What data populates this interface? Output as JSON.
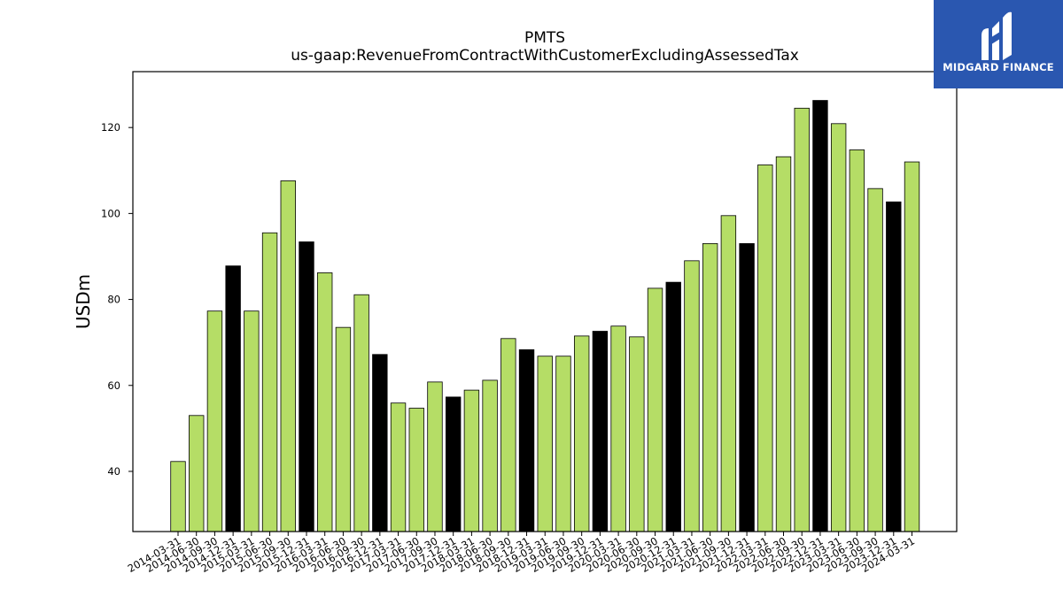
{
  "logo": {
    "text": "MIDGARD FINANCE"
  },
  "colors": {
    "bar": "#b5dd66",
    "highlight": "#000000",
    "edge": "#000000",
    "logo_bg": "#2a57b0"
  },
  "chart_data": {
    "type": "bar",
    "title": "PMTS",
    "subtitle": "us-gaap:RevenueFromContractWithCustomerExcludingAssessedTax",
    "ylabel": "USDm",
    "xlabel": "",
    "ylim": [
      26,
      133
    ],
    "yticks": [
      40,
      60,
      80,
      100,
      120
    ],
    "grid": false,
    "categories": [
      "2014-03-31",
      "2014-06-30",
      "2014-09-30",
      "2014-12-31",
      "2015-03-31",
      "2015-06-30",
      "2015-09-30",
      "2015-12-31",
      "2016-03-31",
      "2016-06-30",
      "2016-09-30",
      "2016-12-31",
      "2017-03-31",
      "2017-06-30",
      "2017-09-30",
      "2017-12-31",
      "2018-03-31",
      "2018-06-30",
      "2018-09-30",
      "2018-12-31",
      "2019-03-31",
      "2019-06-30",
      "2019-09-30",
      "2019-12-31",
      "2020-03-31",
      "2020-06-30",
      "2020-09-30",
      "2020-12-31",
      "2021-03-31",
      "2021-06-30",
      "2021-09-30",
      "2021-12-31",
      "2022-03-31",
      "2022-06-30",
      "2022-09-30",
      "2022-12-31",
      "2023-03-31",
      "2023-06-30",
      "2023-09-30",
      "2023-12-31",
      "2024-03-31"
    ],
    "values": [
      42.3,
      53.0,
      77.3,
      87.8,
      77.3,
      95.5,
      107.6,
      93.4,
      86.2,
      73.5,
      81.1,
      67.2,
      55.9,
      54.7,
      60.8,
      57.3,
      58.9,
      61.2,
      70.9,
      68.3,
      66.8,
      66.8,
      71.5,
      72.6,
      73.8,
      71.3,
      82.6,
      84.0,
      89.0,
      93.0,
      99.5,
      93.0,
      111.3,
      113.2,
      124.5,
      126.3,
      120.9,
      114.8,
      105.8,
      102.7,
      112.0
    ],
    "highlight_categories": [
      "2014-12-31",
      "2015-12-31",
      "2016-12-31",
      "2017-12-31",
      "2018-12-31",
      "2019-12-31",
      "2020-12-31",
      "2021-12-31",
      "2022-12-31",
      "2023-12-31"
    ]
  }
}
